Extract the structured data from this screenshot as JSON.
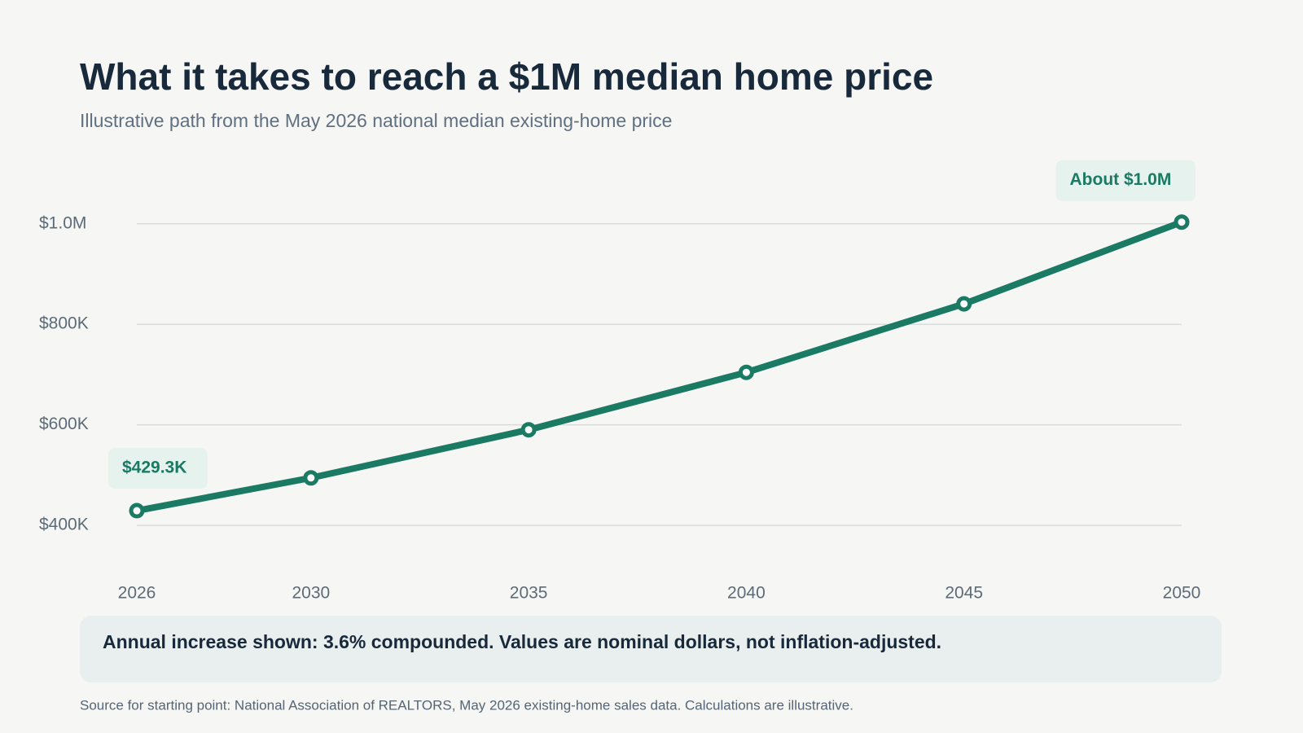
{
  "chart_data": {
    "type": "line",
    "title": "What it takes to reach a $1M median home price",
    "subtitle": "Illustrative path from the May 2026 national median existing-home price",
    "x": [
      2026,
      2030,
      2035,
      2040,
      2045,
      2050
    ],
    "series": [
      {
        "name": "Median home price",
        "color": "#1a7a63",
        "values": [
          429300,
          494550,
          590200,
          704400,
          840700,
          1003300
        ],
        "value_labels": [
          "$429.3K",
          null,
          null,
          null,
          null,
          "About $1.0M"
        ]
      }
    ],
    "xlim": [
      2026,
      2050
    ],
    "xticks": [
      2026,
      2030,
      2035,
      2040,
      2045,
      2050
    ],
    "ylim": [
      350000,
      1100000
    ],
    "yticks": [
      {
        "value": 400000,
        "label": "$400K"
      },
      {
        "value": 600000,
        "label": "$600K"
      },
      {
        "value": 800000,
        "label": "$800K"
      },
      {
        "value": 1000000,
        "label": "$1.0M"
      }
    ],
    "grid": true,
    "note": "Annual increase shown: 3.6% compounded. Values are nominal dollars, not inflation-adjusted.",
    "source": "Source for starting point: National Association of REALTORS, May 2026 existing-home sales data. Calculations are illustrative."
  }
}
